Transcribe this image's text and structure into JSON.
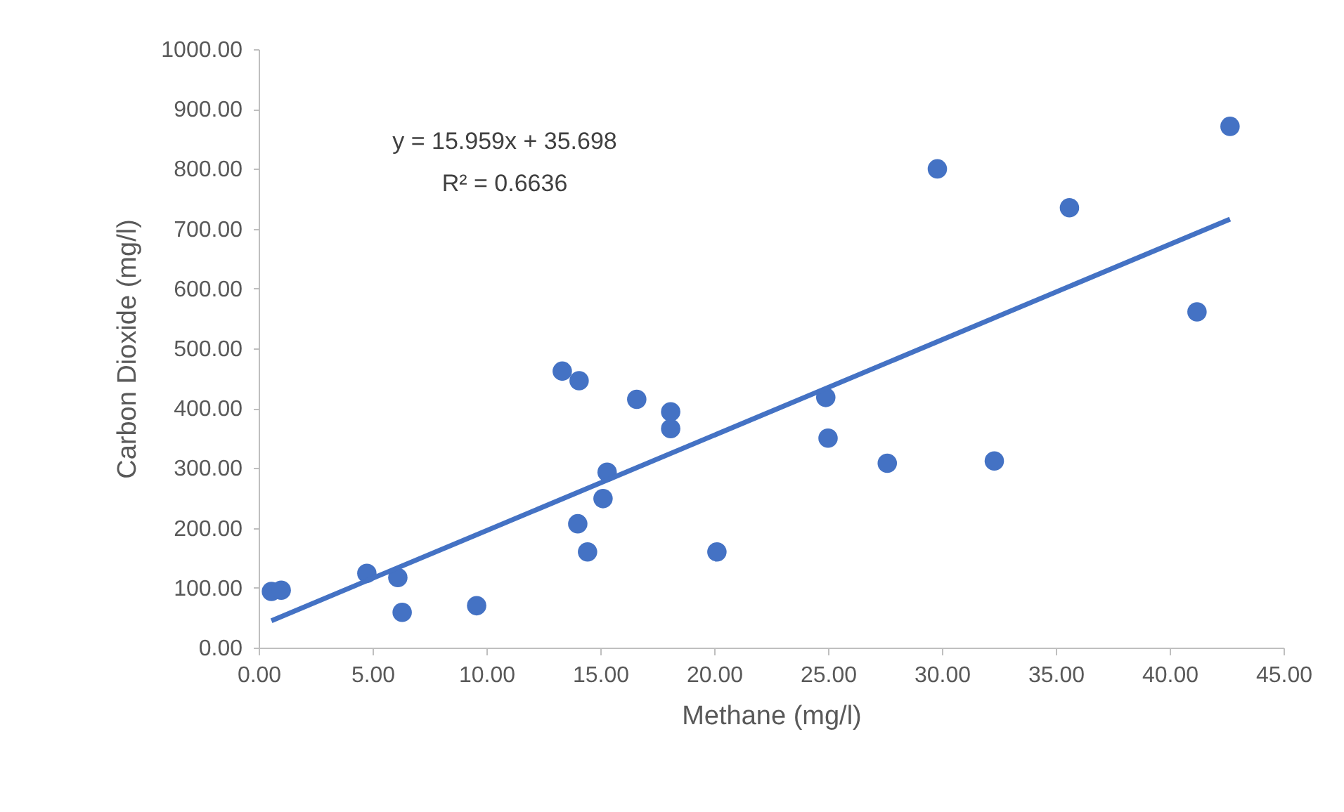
{
  "chart_data": {
    "type": "scatter",
    "xlabel": "Methane (mg/l)",
    "ylabel": "Carbon Dioxide (mg/l)",
    "xlim": [
      0,
      45
    ],
    "ylim": [
      0,
      1000
    ],
    "xticks": [
      {
        "value": 0,
        "label": "0.00"
      },
      {
        "value": 5,
        "label": "5.00"
      },
      {
        "value": 10,
        "label": "10.00"
      },
      {
        "value": 15,
        "label": "15.00"
      },
      {
        "value": 20,
        "label": "20.00"
      },
      {
        "value": 25,
        "label": "25.00"
      },
      {
        "value": 30,
        "label": "30.00"
      },
      {
        "value": 35,
        "label": "35.00"
      },
      {
        "value": 40,
        "label": "40.00"
      },
      {
        "value": 45,
        "label": "45.00"
      }
    ],
    "yticks": [
      {
        "value": 0,
        "label": "0.00"
      },
      {
        "value": 100,
        "label": "100.00"
      },
      {
        "value": 200,
        "label": "200.00"
      },
      {
        "value": 300,
        "label": "300.00"
      },
      {
        "value": 400,
        "label": "400.00"
      },
      {
        "value": 500,
        "label": "500.00"
      },
      {
        "value": 600,
        "label": "600.00"
      },
      {
        "value": 700,
        "label": "700.00"
      },
      {
        "value": 800,
        "label": "800.00"
      },
      {
        "value": 900,
        "label": "900.00"
      },
      {
        "value": 1000,
        "label": "1000.00"
      }
    ],
    "grid": false,
    "annotations": [
      "y = 15.959x + 35.698",
      "R² = 0.6636"
    ],
    "series": [
      {
        "marker": "circle",
        "color": "#4472c4",
        "x": [
          0.56,
          0.99,
          4.75,
          6.11,
          6.3,
          9.57,
          13.33,
          14.07,
          16.6,
          18.09,
          18.09,
          15.3,
          15.12,
          14.01,
          14.44,
          20.12,
          29.8,
          35.6,
          42.65,
          41.2,
          24.9,
          25.0,
          27.6,
          32.3
        ],
        "values": [
          94,
          96,
          124,
          117,
          59,
          70,
          462,
          446,
          415,
          394,
          366,
          293,
          249,
          207,
          160,
          160,
          800,
          735,
          871,
          561,
          418,
          350,
          308,
          312
        ]
      },
      {
        "type": "line",
        "color": "#4472c4",
        "line_style": "solid",
        "x": [
          0.56,
          42.65
        ],
        "values": [
          45,
          716
        ]
      }
    ]
  }
}
